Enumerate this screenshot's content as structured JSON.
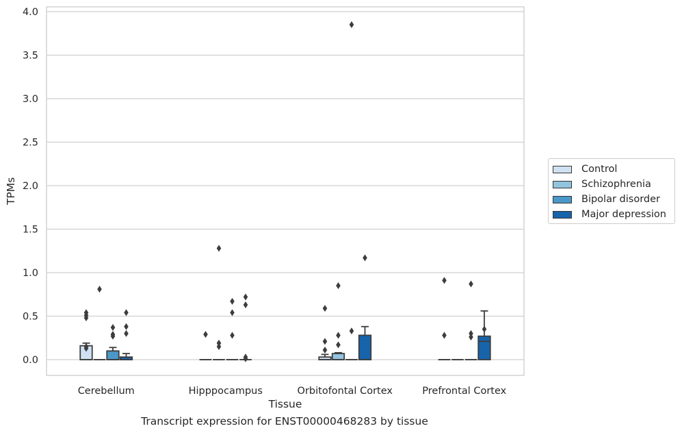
{
  "caption": "Transcript expression for ENST00000468283 by tissue",
  "colors": {
    "Control": "#cfe1f2",
    "Schizophrenia": "#93c4de",
    "Bipolar disorder": "#4a98c9",
    "Major depression": "#1764ab",
    "grid": "#d0d0d0",
    "axis_text": "#262626",
    "box_edge": "#3d3d3d"
  },
  "legend": {
    "position": "right-center",
    "items": [
      "Control",
      "Schizophrenia",
      "Bipolar disorder",
      "Major depression"
    ]
  },
  "chart_data": {
    "type": "box",
    "xlabel": "Tissue",
    "ylabel": "TPMs",
    "ylim": [
      -0.18,
      4.05
    ],
    "yticks": [
      "0.0",
      "0.5",
      "1.0",
      "1.5",
      "2.0",
      "2.5",
      "3.0",
      "3.5",
      "4.0"
    ],
    "grid": "horizontal",
    "categories": [
      "Cerebellum",
      "Hipppocampus",
      "Orbitofontal Cortex",
      "Prefrontal Cortex"
    ],
    "series": [
      {
        "name": "Control",
        "boxes": [
          {
            "q1": 0.0,
            "median": 0.0,
            "q3": 0.16,
            "whisker_low": 0.0,
            "whisker_high": 0.19,
            "outliers": [
              0.54,
              0.51,
              0.48,
              0.15,
              0.13
            ]
          },
          {
            "q1": 0.0,
            "median": 0.0,
            "q3": 0.0,
            "whisker_low": 0.0,
            "whisker_high": 0.0,
            "outliers": [
              0.29
            ]
          },
          {
            "q1": 0.0,
            "median": 0.0,
            "q3": 0.03,
            "whisker_low": 0.0,
            "whisker_high": 0.06,
            "outliers": [
              0.59,
              0.21,
              0.11
            ]
          },
          {
            "q1": 0.0,
            "median": 0.0,
            "q3": 0.0,
            "whisker_low": 0.0,
            "whisker_high": 0.0,
            "outliers": [
              0.91,
              0.28
            ]
          }
        ]
      },
      {
        "name": "Schizophrenia",
        "boxes": [
          {
            "q1": 0.0,
            "median": 0.0,
            "q3": 0.0,
            "whisker_low": 0.0,
            "whisker_high": 0.0,
            "outliers": [
              0.81
            ]
          },
          {
            "q1": 0.0,
            "median": 0.0,
            "q3": 0.0,
            "whisker_low": 0.0,
            "whisker_high": 0.0,
            "outliers": [
              1.28,
              0.19,
              0.15
            ]
          },
          {
            "q1": 0.0,
            "median": 0.0,
            "q3": 0.07,
            "whisker_low": 0.0,
            "whisker_high": 0.08,
            "outliers": [
              0.85,
              0.28,
              0.17
            ]
          },
          {
            "q1": 0.0,
            "median": 0.0,
            "q3": 0.0,
            "whisker_low": 0.0,
            "whisker_high": 0.0,
            "outliers": []
          }
        ]
      },
      {
        "name": "Bipolar disorder",
        "boxes": [
          {
            "q1": 0.0,
            "median": 0.0,
            "q3": 0.1,
            "whisker_low": 0.0,
            "whisker_high": 0.14,
            "outliers": [
              0.37,
              0.29,
              0.27
            ]
          },
          {
            "q1": 0.0,
            "median": 0.0,
            "q3": 0.0,
            "whisker_low": 0.0,
            "whisker_high": 0.0,
            "outliers": [
              0.67,
              0.54,
              0.28
            ]
          },
          {
            "q1": 0.0,
            "median": 0.0,
            "q3": 0.0,
            "whisker_low": 0.0,
            "whisker_high": 0.0,
            "outliers": [
              3.85,
              0.33
            ]
          },
          {
            "q1": 0.0,
            "median": 0.0,
            "q3": 0.0,
            "whisker_low": 0.0,
            "whisker_high": 0.0,
            "outliers": [
              0.87,
              0.3,
              0.26
            ]
          }
        ]
      },
      {
        "name": "Major depression",
        "boxes": [
          {
            "q1": 0.0,
            "median": 0.0,
            "q3": 0.03,
            "whisker_low": 0.0,
            "whisker_high": 0.07,
            "outliers": [
              0.54,
              0.38,
              0.3
            ]
          },
          {
            "q1": 0.0,
            "median": 0.0,
            "q3": 0.0,
            "whisker_low": 0.0,
            "whisker_high": 0.0,
            "outliers": [
              0.72,
              0.63,
              0.03,
              0.01
            ]
          },
          {
            "q1": 0.0,
            "median": 0.0,
            "q3": 0.28,
            "whisker_low": 0.0,
            "whisker_high": 0.38,
            "outliers": [
              1.17
            ]
          },
          {
            "q1": 0.0,
            "median": 0.21,
            "q3": 0.27,
            "whisker_low": 0.0,
            "whisker_high": 0.56,
            "outliers": [
              0.35
            ]
          }
        ]
      }
    ]
  }
}
